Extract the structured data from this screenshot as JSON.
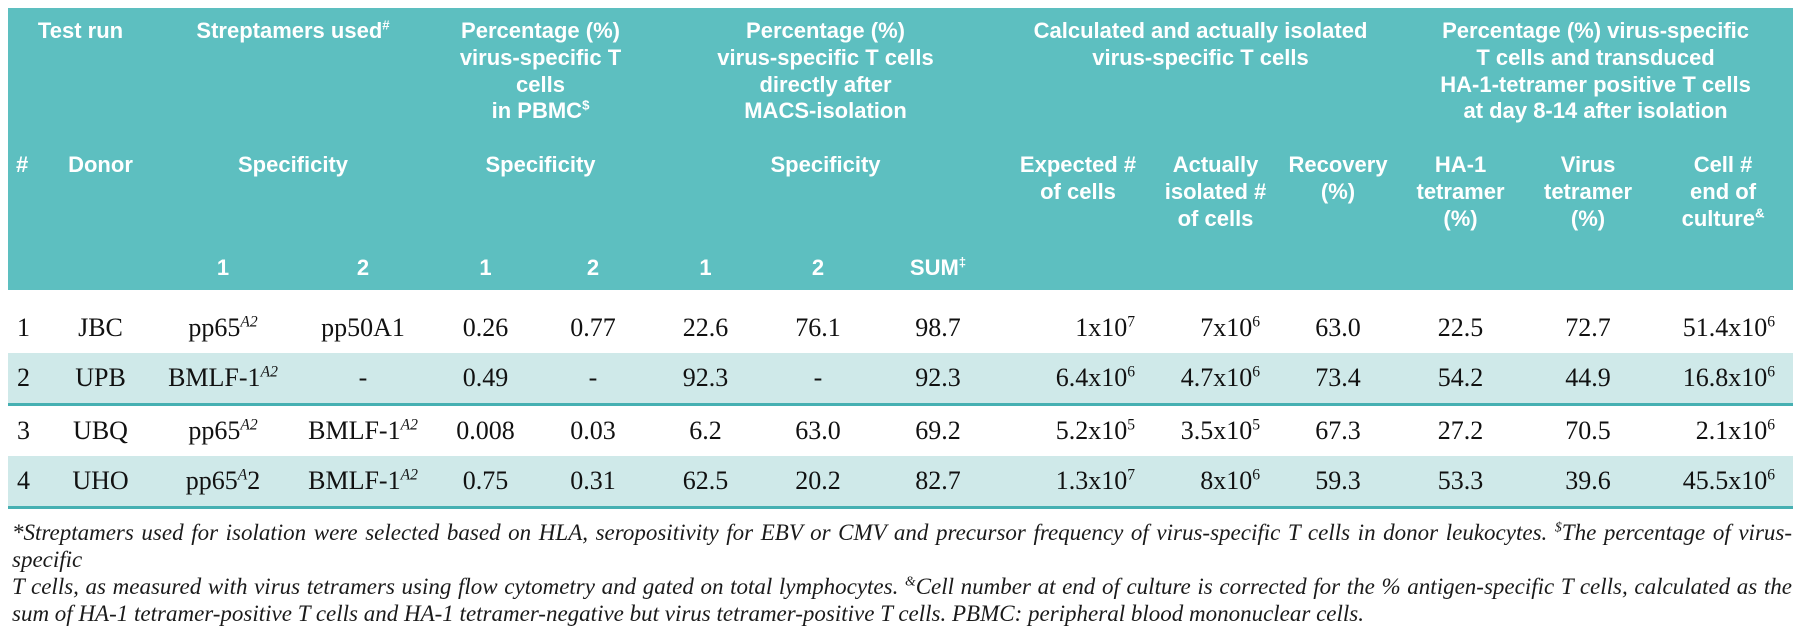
{
  "colors": {
    "header_teal": "#5dbfc0",
    "row_shade": "#cfe9e9",
    "row_rule": "#46b0b2",
    "header_text": "#ffffff",
    "body_text": "#111111"
  },
  "table": {
    "group_headers": {
      "test_run": "Test run",
      "streptamers": "Streptamers used^{#}",
      "pct_pbmc": "Percentage (%)\nvirus-specific T cells\nin PBMC^{$}",
      "pct_macs": "Percentage (%)\nvirus-specific T cells\ndirectly after\nMACS-isolation",
      "calc_isolated": "Calculated and actually isolated\nvirus-specific T cells",
      "pct_day8_14": "Percentage (%) virus-specific\nT cells and transduced\nHA-1-tetramer positive T cells\nat day 8-14 after isolation"
    },
    "sub_headers": {
      "run_number": "#",
      "donor": "Donor",
      "specificity": "Specificity",
      "expected": "Expected #\nof cells",
      "actually_isolated": "Actually\nisolated #\nof cells",
      "recovery": "Recovery\n(%)",
      "ha1_tetramer": "HA-1\ntetramer\n(%)",
      "virus_tetramer": "Virus\ntetramer\n(%)",
      "cell_end_culture": "Cell #\nend of\nculture^{&}"
    },
    "spec_cols": {
      "one": "1",
      "two": "2",
      "sum": "SUM^{‡}"
    },
    "rows": [
      {
        "num": "1",
        "donor": "JBC",
        "spec1": "pp65^{A2}",
        "spec2": "pp50A1",
        "pbmc1": "0.26",
        "pbmc2": "0.77",
        "macs1": "22.6",
        "macs2": "76.1",
        "sum": "98.7",
        "expected": "1x10^{7}",
        "isolated": "7x10^{6}",
        "recovery": "63.0",
        "ha1": "22.5",
        "virus": "72.7",
        "cells": "51.4x10^{6}"
      },
      {
        "num": "2",
        "donor": "UPB",
        "spec1": "BMLF-1^{A2}",
        "spec2": "-",
        "pbmc1": "0.49",
        "pbmc2": "-",
        "macs1": "92.3",
        "macs2": "-",
        "sum": "92.3",
        "expected": "6.4x10^{6}",
        "isolated": "4.7x10^{6}",
        "recovery": "73.4",
        "ha1": "54.2",
        "virus": "44.9",
        "cells": "16.8x10^{6}"
      },
      {
        "num": "3",
        "donor": "UBQ",
        "spec1": "pp65^{A2}",
        "spec2": "BMLF-1^{A2}",
        "pbmc1": "0.008",
        "pbmc2": "0.03",
        "macs1": "6.2",
        "macs2": "63.0",
        "sum": "69.2",
        "expected": "5.2x10^{5}",
        "isolated": "3.5x10^{5}",
        "recovery": "67.3",
        "ha1": "27.2",
        "virus": "70.5",
        "cells": "2.1x10^{6}"
      },
      {
        "num": "4",
        "donor": "UHO",
        "spec1": "pp65^{A}2",
        "spec2": "BMLF-1^{A2}",
        "pbmc1": "0.75",
        "pbmc2": "0.31",
        "macs1": "62.5",
        "macs2": "20.2",
        "sum": "82.7",
        "expected": "1.3x10^{7}",
        "isolated": "8x10^{6}",
        "recovery": "59.3",
        "ha1": "53.3",
        "virus": "39.6",
        "cells": "45.5x10^{6}"
      }
    ]
  },
  "footnote": {
    "lines": [
      "*Streptamers used for isolation were selected based on HLA, seropositivity for EBV or CMV and precursor frequency of virus-specific T cells in donor leukocytes. ^{$}The percentage of virus-specific",
      "T cells, as measured with virus tetramers using flow cytometry and gated on total lymphocytes. ^{&}Cell number at end of culture is corrected for the % antigen-specific T cells, calculated as the",
      "sum of HA-1 tetramer-positive T cells and HA-1 tetramer-negative but virus tetramer-positive T cells. PBMC: peripheral blood mononuclear cells."
    ]
  }
}
